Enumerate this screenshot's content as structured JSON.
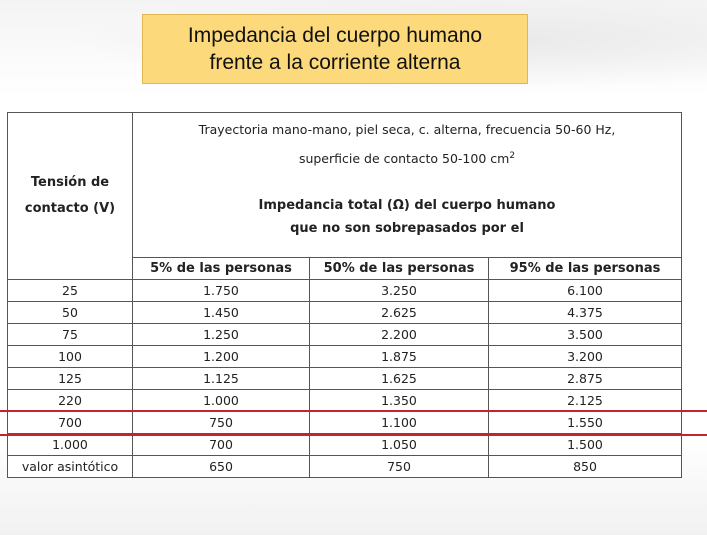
{
  "title": {
    "line1": "Impedancia del cuerpo humano",
    "line2": "frente a la corriente alterna"
  },
  "table": {
    "col0_header_line1": "Tensión de",
    "col0_header_line2": "contacto (V)",
    "desc_line1": "Trayectoria mano-mano, piel seca, c. alterna, frecuencia 50-60 Hz,",
    "desc_line2": "superficie de contacto 50-100 cm",
    "desc_sup": "2",
    "impedance_line1": "Impedancia total (Ω) del cuerpo humano",
    "impedance_line2": "que no son sobrepasados por el",
    "subheaders": [
      "5% de las personas",
      "50% de las personas",
      "95% de las personas"
    ],
    "rows": [
      [
        "25",
        "1.750",
        "3.250",
        "6.100"
      ],
      [
        "50",
        "1.450",
        "2.625",
        "4.375"
      ],
      [
        "75",
        "1.250",
        "2.200",
        "3.500"
      ],
      [
        "100",
        "1.200",
        "1.875",
        "3.200"
      ],
      [
        "125",
        "1.125",
        "1.625",
        "2.875"
      ],
      [
        "220",
        "1.000",
        "1.350",
        "2.125"
      ],
      [
        "700",
        "750",
        "1.100",
        "1.550"
      ],
      [
        "1.000",
        "700",
        "1.050",
        "1.500"
      ],
      [
        "valor asintótico",
        "650",
        "750",
        "850"
      ]
    ],
    "highlighted_row": "220",
    "highlight_color": "#c8232c"
  }
}
